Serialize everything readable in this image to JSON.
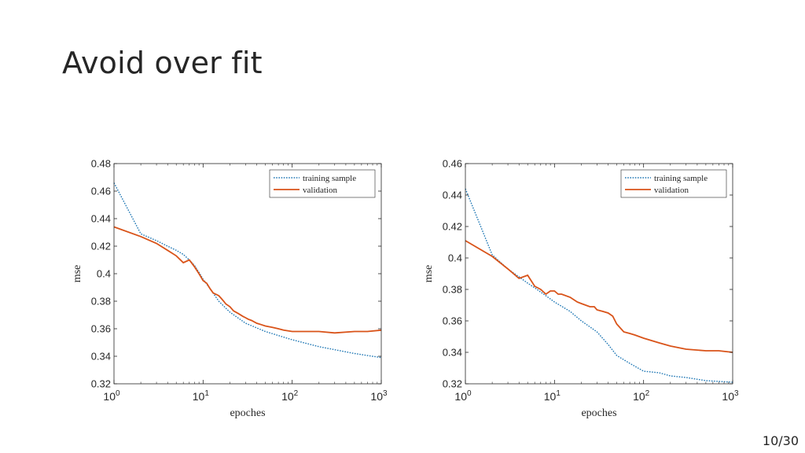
{
  "slide": {
    "title": "Avoid over fit",
    "page_number": "10/30"
  },
  "colors": {
    "training": "#1f77b4",
    "validation": "#d95319",
    "axis": "#262626"
  },
  "chart_data": [
    {
      "type": "line",
      "xlabel": "epoches",
      "ylabel": "mse",
      "xscale": "log",
      "xlim": [
        1,
        1000
      ],
      "ylim": [
        0.32,
        0.48
      ],
      "yticks": [
        0.32,
        0.34,
        0.36,
        0.38,
        0.4,
        0.42,
        0.44,
        0.46,
        0.48
      ],
      "ytick_labels": [
        "0.32",
        "0.34",
        "0.36",
        "0.38",
        "0.4",
        "0.42",
        "0.44",
        "0.46",
        "0.48"
      ],
      "xticks": [
        {
          "base": "10",
          "exp": "0"
        },
        {
          "base": "10",
          "exp": "1"
        },
        {
          "base": "10",
          "exp": "2"
        },
        {
          "base": "10",
          "exp": "3"
        }
      ],
      "legend_position": "top-right",
      "grid": false,
      "series": [
        {
          "name": "training sample",
          "style": "dotted",
          "x": [
            1,
            2,
            3,
            4,
            5,
            6,
            7,
            8,
            9,
            10,
            12,
            15,
            20,
            30,
            50,
            100,
            200,
            500,
            1000
          ],
          "y": [
            0.466,
            0.429,
            0.424,
            0.42,
            0.417,
            0.414,
            0.41,
            0.406,
            0.401,
            0.396,
            0.389,
            0.38,
            0.372,
            0.364,
            0.358,
            0.352,
            0.347,
            0.342,
            0.339
          ]
        },
        {
          "name": "validation",
          "style": "solid",
          "x": [
            1,
            2,
            3,
            4,
            5,
            6,
            7,
            8,
            9,
            10,
            11,
            12,
            13,
            14,
            15,
            16,
            17,
            18,
            20,
            22,
            25,
            28,
            30,
            32,
            35,
            40,
            45,
            50,
            60,
            70,
            80,
            100,
            150,
            200,
            300,
            500,
            700,
            1000
          ],
          "y": [
            0.434,
            0.427,
            0.422,
            0.417,
            0.413,
            0.408,
            0.41,
            0.405,
            0.4,
            0.395,
            0.393,
            0.389,
            0.386,
            0.385,
            0.384,
            0.382,
            0.38,
            0.378,
            0.376,
            0.373,
            0.371,
            0.369,
            0.368,
            0.367,
            0.366,
            0.364,
            0.363,
            0.362,
            0.361,
            0.36,
            0.359,
            0.358,
            0.358,
            0.358,
            0.357,
            0.358,
            0.358,
            0.359
          ]
        }
      ]
    },
    {
      "type": "line",
      "xlabel": "epoches",
      "ylabel": "mse",
      "xscale": "log",
      "xlim": [
        1,
        1000
      ],
      "ylim": [
        0.32,
        0.46
      ],
      "yticks": [
        0.32,
        0.34,
        0.36,
        0.38,
        0.4,
        0.42,
        0.44,
        0.46
      ],
      "ytick_labels": [
        "0.32",
        "0.34",
        "0.36",
        "0.38",
        "0.4",
        "0.42",
        "0.44",
        "0.46"
      ],
      "xticks": [
        {
          "base": "10",
          "exp": "0"
        },
        {
          "base": "10",
          "exp": "1"
        },
        {
          "base": "10",
          "exp": "2"
        },
        {
          "base": "10",
          "exp": "3"
        }
      ],
      "legend_position": "top-right",
      "grid": false,
      "series": [
        {
          "name": "training sample",
          "style": "dotted",
          "x": [
            1,
            2,
            3,
            4,
            5,
            6,
            8,
            10,
            15,
            20,
            30,
            40,
            50,
            70,
            100,
            150,
            200,
            300,
            500,
            1000
          ],
          "y": [
            0.444,
            0.402,
            0.393,
            0.388,
            0.384,
            0.381,
            0.376,
            0.372,
            0.366,
            0.36,
            0.353,
            0.345,
            0.338,
            0.333,
            0.328,
            0.327,
            0.325,
            0.324,
            0.322,
            0.321
          ]
        },
        {
          "name": "validation",
          "style": "solid",
          "x": [
            1,
            2,
            3,
            4,
            5,
            6,
            7,
            8,
            9,
            10,
            11,
            12,
            15,
            18,
            20,
            25,
            28,
            30,
            35,
            40,
            45,
            50,
            60,
            70,
            80,
            100,
            150,
            200,
            300,
            500,
            700,
            1000
          ],
          "y": [
            0.411,
            0.401,
            0.393,
            0.387,
            0.389,
            0.382,
            0.38,
            0.377,
            0.379,
            0.379,
            0.377,
            0.377,
            0.375,
            0.372,
            0.371,
            0.369,
            0.369,
            0.367,
            0.366,
            0.365,
            0.363,
            0.358,
            0.353,
            0.352,
            0.351,
            0.349,
            0.346,
            0.344,
            0.342,
            0.341,
            0.341,
            0.34
          ]
        }
      ]
    }
  ]
}
